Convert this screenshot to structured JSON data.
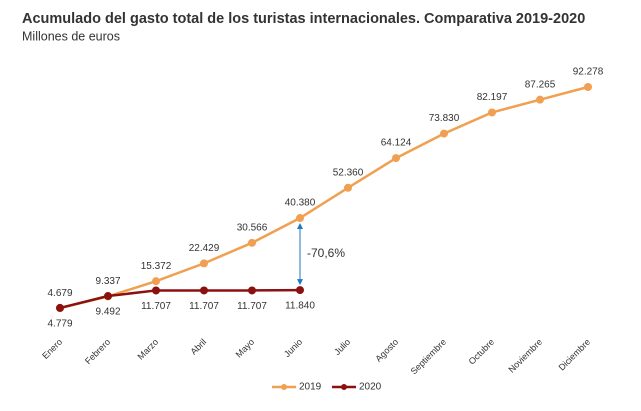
{
  "chart_data": {
    "type": "line",
    "title": "Acumulado del gasto total de los turistas internacionales. Comparativa 2019-2020",
    "subtitle": "Millones de euros",
    "categories": [
      "Enero",
      "Febrero",
      "Marzo",
      "Abril",
      "Mayo",
      "Junio",
      "Julio",
      "Agosto",
      "Septiembre",
      "Octubre",
      "Noviembre",
      "Diciembre"
    ],
    "series": [
      {
        "name": "2019",
        "color": "#f0a050",
        "values": [
          4679,
          9337,
          15372,
          22429,
          30566,
          40380,
          52360,
          64124,
          73830,
          82197,
          87265,
          92278
        ],
        "value_labels": [
          "4.679",
          "9.337",
          "15.372",
          "22.429",
          "30.566",
          "40.380",
          "52.360",
          "64.124",
          "73.830",
          "82.197",
          "87.265",
          "92.278"
        ]
      },
      {
        "name": "2020",
        "color": "#8b1010",
        "values": [
          4779,
          9492,
          11707,
          11707,
          11707,
          11840,
          null,
          null,
          null,
          null,
          null,
          null
        ],
        "value_labels": [
          "4.779",
          "9.492",
          "11.707",
          "11.707",
          "11.707",
          "11.840",
          null,
          null,
          null,
          null,
          null,
          null
        ]
      }
    ],
    "annotation": "-70,6%",
    "annotation_color": "#1f7ac0"
  }
}
